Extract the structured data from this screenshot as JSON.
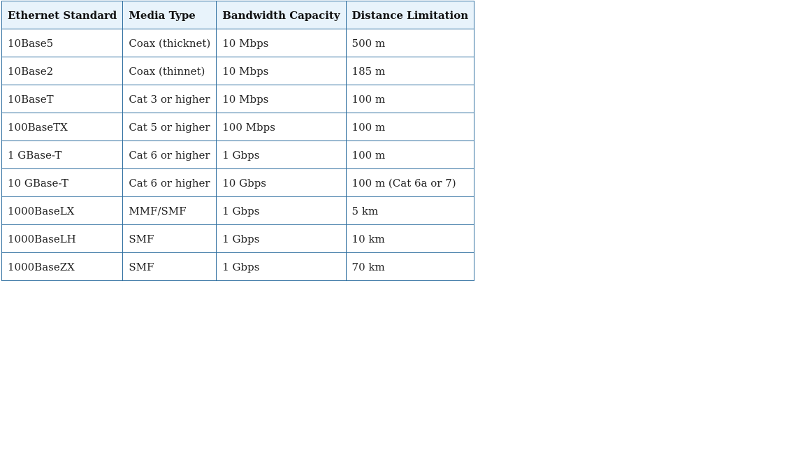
{
  "table": {
    "headers": [
      "Ethernet Standard",
      "Media Type",
      "Bandwidth Capacity",
      "Distance Limitation"
    ],
    "rows": [
      [
        "10Base5",
        "Coax (thicknet)",
        "10 Mbps",
        "500 m"
      ],
      [
        "10Base2",
        "Coax (thinnet)",
        "10 Mbps",
        "185 m"
      ],
      [
        "10BaseT",
        "Cat 3 or higher",
        "10 Mbps",
        "100 m"
      ],
      [
        "100BaseTX",
        "Cat 5 or higher",
        "100 Mbps",
        "100 m"
      ],
      [
        "1 GBase-T",
        "Cat 6 or higher",
        "1 Gbps",
        "100 m"
      ],
      [
        "10 GBase-T",
        "Cat 6 or higher",
        "10 Gbps",
        "100 m (Cat 6a or 7)"
      ],
      [
        "1000BaseLX",
        "MMF/SMF",
        "1 Gbps",
        "5 km"
      ],
      [
        "1000BaseLH",
        "SMF",
        "1 Gbps",
        "10 km"
      ],
      [
        "1000BaseZX",
        "SMF",
        "1 Gbps",
        "70 km"
      ]
    ]
  },
  "colors": {
    "border": "#2f6fa0",
    "header_bg": "#e8f3fb",
    "text": "#222222"
  }
}
